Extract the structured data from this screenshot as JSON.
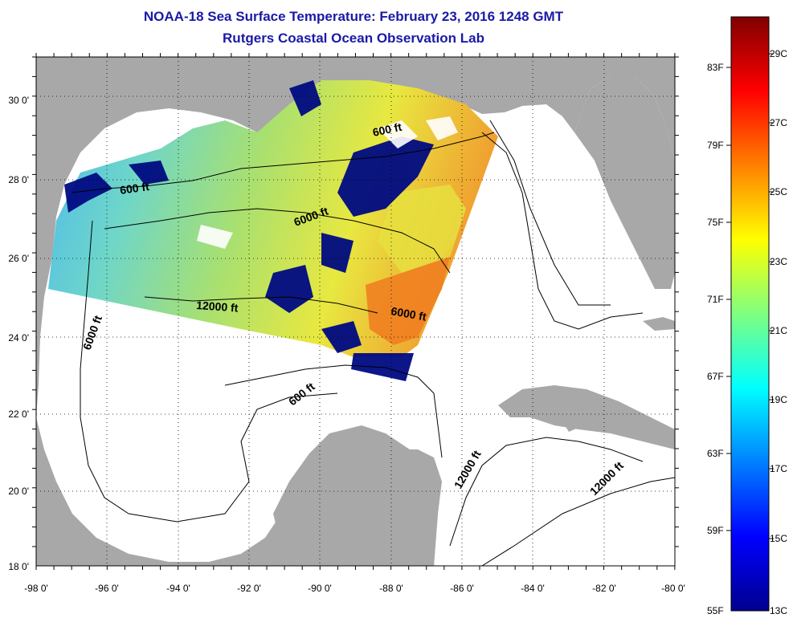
{
  "title": {
    "line1": "NOAA-18 Sea Surface Temperature:  February 23, 2016 1248 GMT",
    "line2": "Rutgers Coastal Ocean Observation Lab"
  },
  "colors": {
    "title": "#1a1aa6",
    "land": "#a8a8a8",
    "ocean_nodata": "#ffffff",
    "cloud_mask": "#000a82"
  },
  "map": {
    "x_axis_labels": [
      "-98 0'",
      "-96 0'",
      "-94 0'",
      "-92 0'",
      "-90 0'",
      "-88 0'",
      "-86 0'",
      "-84 0'",
      "-82 0'",
      "-80 0'"
    ],
    "y_axis_labels": [
      "30 0'",
      "28 0'",
      "26 0'",
      "24 0'",
      "22 0'",
      "20 0'",
      "18 0'"
    ],
    "contour_labels": [
      {
        "text": "600 ft",
        "name": "contour-label-600-north"
      },
      {
        "text": "600 ft",
        "name": "contour-label-600-west"
      },
      {
        "text": "6000 ft",
        "name": "contour-label-6000-central"
      },
      {
        "text": "12000 ft",
        "name": "contour-label-12000-central"
      },
      {
        "text": "6000 ft",
        "name": "contour-label-6000-east"
      },
      {
        "text": "6000 ft",
        "name": "contour-label-6000-west"
      },
      {
        "text": "600 ft",
        "name": "contour-label-600-south"
      },
      {
        "text": "12000 ft",
        "name": "contour-label-12000-caribbean-1"
      },
      {
        "text": "12000 ft",
        "name": "contour-label-12000-caribbean-2"
      }
    ]
  },
  "colorbar": {
    "fahrenheit_labels": [
      "83F",
      "79F",
      "75F",
      "71F",
      "67F",
      "63F",
      "59F",
      "55F"
    ],
    "celsius_labels": [
      "29C",
      "27C",
      "25C",
      "23C",
      "21C",
      "19C",
      "17C",
      "15C",
      "13C"
    ],
    "gradient_colors": [
      "#00008f",
      "#0000ff",
      "#0080ff",
      "#00ffff",
      "#80ff80",
      "#ffff00",
      "#ff8000",
      "#ff0000",
      "#800000"
    ]
  }
}
